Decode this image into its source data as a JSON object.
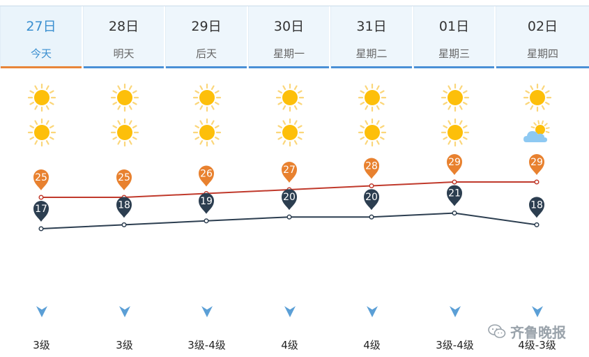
{
  "days": [
    {
      "date": "27日",
      "weekday": "今天",
      "icon_day": "sun-icon",
      "icon_night": "sun-icon",
      "wind": "3级"
    },
    {
      "date": "28日",
      "weekday": "明天",
      "icon_day": "sun-icon",
      "icon_night": "sun-icon",
      "wind": "3级"
    },
    {
      "date": "29日",
      "weekday": "后天",
      "icon_day": "sun-icon",
      "icon_night": "sun-icon",
      "wind": "3级-4级"
    },
    {
      "date": "30日",
      "weekday": "星期一",
      "icon_day": "sun-icon",
      "icon_night": "sun-icon",
      "wind": "4级"
    },
    {
      "date": "31日",
      "weekday": "星期二",
      "icon_day": "sun-icon",
      "icon_night": "sun-icon",
      "wind": "4级"
    },
    {
      "date": "01日",
      "weekday": "星期三",
      "icon_day": "sun-icon",
      "icon_night": "sun-icon",
      "wind": "3级-4级"
    },
    {
      "date": "02日",
      "weekday": "星期四",
      "icon_day": "sun-icon",
      "icon_night": "partly-cloudy-icon",
      "wind": "4级-3级"
    }
  ],
  "active_index": 0,
  "chart_data": {
    "type": "line",
    "categories": [
      "27日",
      "28日",
      "29日",
      "30日",
      "31日",
      "01日",
      "02日"
    ],
    "series": [
      {
        "values": [
          25,
          25,
          26,
          27,
          28,
          29,
          29
        ],
        "color": "#c0392b",
        "pin_color": "#e8812f"
      },
      {
        "values": [
          17,
          18,
          19,
          20,
          20,
          21,
          18
        ],
        "color": "#2c3e50",
        "pin_color": "#2c3e50"
      }
    ]
  },
  "watermark": "齐鲁晚报",
  "colors": {
    "accent": "#4a90d6",
    "active": "#e8853a"
  }
}
